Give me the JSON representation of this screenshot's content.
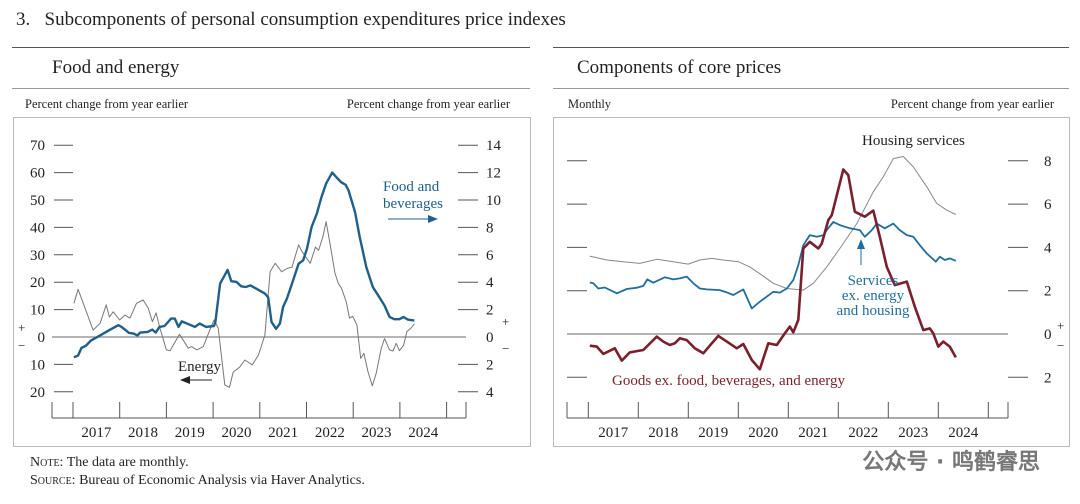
{
  "figure": {
    "number": "3.",
    "title": "Subcomponents of personal consumption expenditures price indexes",
    "note_label": "Note:",
    "note": "The data are monthly.",
    "source_label": "Source:",
    "source": "Bureau of Economic Analysis via Haver Analytics.",
    "watermark": "公众号 · 鸣鹤睿思"
  },
  "chart_data": [
    {
      "type": "line",
      "title": "Food and energy",
      "ylabel_left": "Percent change from year earlier",
      "ylabel_right": "Percent change from year earlier",
      "x_tick_labels": [
        "2017",
        "2018",
        "2019",
        "2020",
        "2021",
        "2022",
        "2023",
        "2024"
      ],
      "xlim": [
        2016.55,
        2025.4
      ],
      "ylim_left": [
        -20,
        70
      ],
      "ylim_right": [
        -4,
        14
      ],
      "y_ticks_left": [
        {
          "v": 70,
          "t": "70"
        },
        {
          "v": 60,
          "t": "60"
        },
        {
          "v": 50,
          "t": "50"
        },
        {
          "v": 40,
          "t": "40"
        },
        {
          "v": 30,
          "t": "30"
        },
        {
          "v": 20,
          "t": "20"
        },
        {
          "v": 10,
          "t": "10"
        },
        {
          "v": 0,
          "t": "0"
        },
        {
          "v": -10,
          "t": "10"
        },
        {
          "v": -20,
          "t": "20"
        }
      ],
      "y_ticks_right": [
        {
          "v": 14,
          "t": "14"
        },
        {
          "v": 12,
          "t": "12"
        },
        {
          "v": 10,
          "t": "10"
        },
        {
          "v": 8,
          "t": "8"
        },
        {
          "v": 6,
          "t": "6"
        },
        {
          "v": 4,
          "t": "4"
        },
        {
          "v": 2,
          "t": "2"
        },
        {
          "v": 0,
          "t": "0"
        },
        {
          "v": -2,
          "t": "2"
        },
        {
          "v": -4,
          "t": "4"
        }
      ],
      "series": [
        {
          "name": "Energy",
          "axis": "left",
          "color": "#777777",
          "width": 1,
          "label": "Energy",
          "arrow": "left",
          "x": [
            2017.02,
            2017.11,
            2017.43,
            2017.58,
            2017.71,
            2017.78,
            2017.86,
            2018.0,
            2018.11,
            2018.22,
            2018.36,
            2018.5,
            2018.61,
            2018.7,
            2018.78,
            2018.86,
            2019.0,
            2019.08,
            2019.28,
            2019.47,
            2019.54,
            2019.65,
            2019.79,
            2019.93,
            2020.02,
            2020.11,
            2020.25,
            2020.35,
            2020.43,
            2020.57,
            2020.68,
            2020.84,
            2020.97,
            2021.11,
            2021.22,
            2021.33,
            2021.47,
            2021.58,
            2021.69,
            2021.83,
            2021.9,
            2022.08,
            2022.19,
            2022.26,
            2022.35,
            2022.42,
            2022.5,
            2022.61,
            2022.68,
            2022.75,
            2022.85,
            2022.92,
            2022.99,
            2023.08,
            2023.16,
            2023.23,
            2023.32,
            2023.41,
            2023.49,
            2023.6,
            2023.67,
            2023.78,
            2023.85,
            2023.92,
            2023.99,
            2024.08,
            2024.15,
            2024.24,
            2024.31
          ],
          "y": [
            12.3,
            17.4,
            2.5,
            5,
            11.7,
            7.3,
            9.2,
            6.2,
            8,
            6.9,
            12.3,
            13.5,
            10.6,
            5.6,
            8.8,
            3.3,
            -4.7,
            -5,
            1,
            -4.1,
            -3.5,
            -4.7,
            -3.5,
            2.5,
            6.2,
            3.3,
            -17.5,
            -18.4,
            -12.8,
            -11,
            -8.4,
            -10.2,
            -6.6,
            0.7,
            23.8,
            26.9,
            23.8,
            25,
            25.5,
            33.6,
            31.3,
            26.9,
            32.8,
            31.6,
            36.5,
            42.1,
            34.3,
            23.2,
            19.6,
            17.8,
            12.9,
            6.9,
            7.5,
            4.4,
            -7.8,
            -6,
            -12.8,
            -17.8,
            -13.4,
            -4.2,
            -0.6,
            -4.7,
            -5.1,
            -2.3,
            -5,
            -3,
            2,
            3.3,
            4.8
          ]
        },
        {
          "name": "Food and beverages",
          "axis": "right",
          "color": "#1f5f8b",
          "width": 2.4,
          "label_lines": [
            "Food and",
            "beverages"
          ],
          "arrow": "right",
          "x": [
            2017.02,
            2017.11,
            2017.18,
            2017.28,
            2017.38,
            2017.58,
            2017.78,
            2017.97,
            2018.04,
            2018.2,
            2018.3,
            2018.38,
            2018.44,
            2018.6,
            2018.7,
            2018.77,
            2018.85,
            2018.96,
            2019.1,
            2019.18,
            2019.26,
            2019.33,
            2019.48,
            2019.61,
            2019.71,
            2019.85,
            2020.02,
            2020.05,
            2020.15,
            2020.31,
            2020.39,
            2020.5,
            2020.6,
            2020.7,
            2020.8,
            2021.11,
            2021.18,
            2021.25,
            2021.35,
            2021.43,
            2021.5,
            2021.58,
            2021.69,
            2021.83,
            2021.93,
            2022.01,
            2022.11,
            2022.22,
            2022.32,
            2022.42,
            2022.55,
            2022.63,
            2022.74,
            2022.84,
            2022.9,
            2023.04,
            2023.14,
            2023.28,
            2023.42,
            2023.56,
            2023.67,
            2023.78,
            2023.88,
            2023.99,
            2024.08,
            2024.17,
            2024.31
          ],
          "y": [
            -1.48,
            -1.35,
            -0.8,
            -0.63,
            -0.27,
            0.12,
            0.5,
            0.86,
            0.74,
            0.3,
            0.25,
            0.12,
            0.32,
            0.37,
            0.54,
            0.32,
            0.74,
            0.8,
            1.34,
            1.34,
            0.74,
            1.14,
            0.93,
            0.74,
            0.98,
            0.74,
            0.8,
            1.1,
            3.9,
            4.9,
            4.07,
            4.02,
            3.7,
            3.65,
            3.77,
            3.17,
            2.9,
            1.1,
            0.6,
            0.98,
            2.2,
            2.8,
            3.9,
            5.35,
            5.6,
            6.45,
            8.03,
            9,
            10.2,
            11.2,
            12.0,
            11.7,
            11.3,
            11.1,
            10.7,
            9.1,
            7.3,
            5.1,
            3.65,
            2.9,
            2.3,
            1.46,
            1.3,
            1.3,
            1.46,
            1.27,
            1.2
          ]
        }
      ]
    },
    {
      "type": "line",
      "title": "Components of core prices",
      "ylabel_left": "Monthly",
      "ylabel_right": "Percent change from year earlier",
      "x_tick_labels": [
        "2017",
        "2018",
        "2019",
        "2020",
        "2021",
        "2022",
        "2023",
        "2024"
      ],
      "xlim": [
        2016.58,
        2025.4
      ],
      "ylim": [
        -2,
        8
      ],
      "y_ticks_right": [
        {
          "v": 8,
          "t": "8"
        },
        {
          "v": 6,
          "t": "6"
        },
        {
          "v": 4,
          "t": "4"
        },
        {
          "v": 2,
          "t": "2"
        },
        {
          "v": 0,
          "t": "0"
        },
        {
          "v": -2,
          "t": "2"
        }
      ],
      "series": [
        {
          "name": "Housing services",
          "color": "#888888",
          "width": 1,
          "label_lines": [
            "Housing services"
          ],
          "x": [
            2017.03,
            2017.37,
            2017.7,
            2018.03,
            2018.37,
            2018.7,
            2019.0,
            2019.23,
            2019.47,
            2019.7,
            2020.0,
            2020.23,
            2020.47,
            2020.7,
            2020.97,
            2021.3,
            2021.5,
            2021.77,
            2022.03,
            2022.37,
            2022.7,
            2022.9,
            2023.1,
            2023.3,
            2023.5,
            2023.77,
            2023.97,
            2024.17,
            2024.35
          ],
          "y": [
            3.6,
            3.42,
            3.34,
            3.26,
            3.45,
            3.34,
            3.23,
            3.42,
            3.49,
            3.42,
            3.34,
            3.1,
            2.72,
            2.34,
            2.1,
            2.03,
            2.34,
            3.1,
            3.95,
            5.1,
            6.57,
            7.26,
            8.1,
            8.2,
            7.72,
            6.8,
            6.03,
            5.72,
            5.52
          ]
        },
        {
          "name": "Services ex. energy and housing",
          "color": "#1f6e9c",
          "width": 1.8,
          "label_lines": [
            "Services",
            "ex. energy",
            "and housing"
          ],
          "arrow": "up",
          "x": [
            2017.03,
            2017.1,
            2017.2,
            2017.33,
            2017.57,
            2017.77,
            2017.97,
            2018.1,
            2018.18,
            2018.3,
            2018.53,
            2018.7,
            2018.83,
            2018.97,
            2019.1,
            2019.23,
            2019.37,
            2019.63,
            2019.77,
            2019.9,
            2020.1,
            2020.27,
            2020.43,
            2020.7,
            2020.83,
            2020.97,
            2021.1,
            2021.2,
            2021.3,
            2021.43,
            2021.57,
            2021.7,
            2021.77,
            2021.9,
            2022.03,
            2022.23,
            2022.43,
            2022.53,
            2022.67,
            2022.77,
            2022.93,
            2023.1,
            2023.23,
            2023.37,
            2023.5,
            2023.63,
            2023.77,
            2023.95,
            2024.03,
            2024.13,
            2024.23,
            2024.35
          ],
          "y": [
            2.38,
            2.34,
            2.1,
            2.15,
            1.88,
            2.08,
            2.14,
            2.22,
            2.52,
            2.37,
            2.62,
            2.52,
            2.57,
            2.65,
            2.34,
            2.1,
            2.06,
            2.03,
            1.92,
            1.8,
            2.06,
            1.18,
            1.49,
            1.95,
            1.91,
            2.1,
            2.49,
            3.18,
            4.1,
            4.57,
            4.49,
            4.57,
            4.8,
            5.18,
            5.03,
            4.88,
            4.8,
            4.49,
            4.8,
            5.1,
            4.88,
            5.1,
            4.8,
            4.57,
            4.49,
            4.1,
            3.72,
            3.34,
            3.57,
            3.42,
            3.49,
            3.38
          ]
        },
        {
          "name": "Goods ex. food, beverages, and energy",
          "color": "#7a1f2b",
          "width": 2.6,
          "label_lines": [
            "Goods ex. food, beverages, and energy"
          ],
          "x": [
            2017.03,
            2017.17,
            2017.3,
            2017.53,
            2017.67,
            2017.83,
            2018.1,
            2018.37,
            2018.5,
            2018.63,
            2018.73,
            2018.83,
            2018.97,
            2019.13,
            2019.3,
            2019.47,
            2019.6,
            2019.77,
            2019.97,
            2020.1,
            2020.27,
            2020.43,
            2020.6,
            2020.77,
            2020.93,
            2021.03,
            2021.1,
            2021.2,
            2021.3,
            2021.43,
            2021.6,
            2021.67,
            2021.8,
            2021.87,
            2022.1,
            2022.2,
            2022.33,
            2022.53,
            2022.7,
            2022.83,
            2022.97,
            2023.13,
            2023.37,
            2023.53,
            2023.7,
            2023.83,
            2023.9,
            2024.0,
            2024.1,
            2024.23,
            2024.35
          ],
          "y": [
            -0.54,
            -0.58,
            -0.92,
            -0.66,
            -1.23,
            -0.85,
            -0.74,
            -0.12,
            -0.35,
            -0.51,
            -0.43,
            -0.2,
            -0.28,
            -0.66,
            -0.89,
            -0.43,
            -0.09,
            -0.35,
            -0.66,
            -0.46,
            -1.2,
            -1.63,
            -0.43,
            -0.51,
            0.03,
            0.34,
            0.08,
            0.65,
            3.95,
            4.26,
            3.95,
            4.18,
            5.26,
            5.49,
            7.6,
            7.34,
            5.65,
            5.42,
            5.7,
            4.49,
            3.1,
            2.26,
            2.42,
            1.26,
            0.18,
            0.26,
            0.03,
            -0.58,
            -0.35,
            -0.58,
            -1.08
          ]
        }
      ]
    }
  ]
}
